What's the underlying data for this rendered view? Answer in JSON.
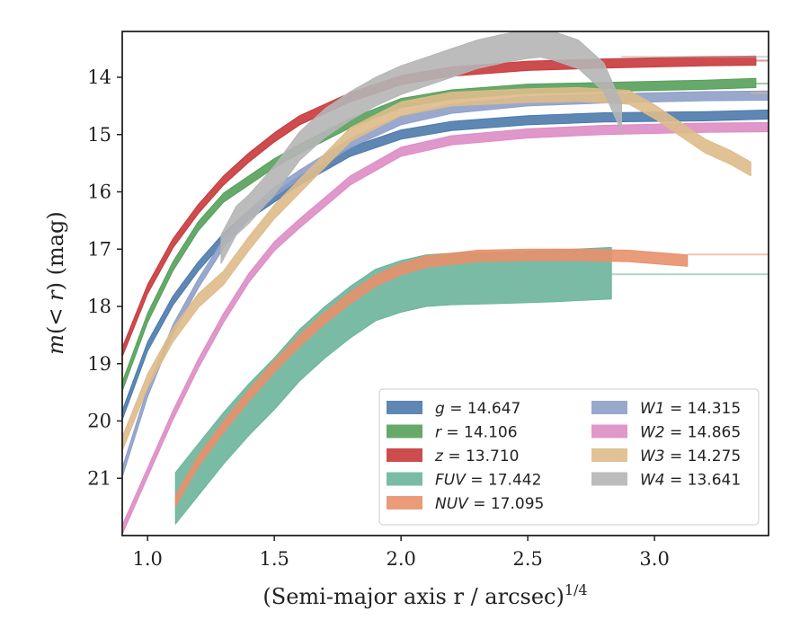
{
  "chart_data": {
    "type": "line",
    "xlabel": "(Semi-major axis r / arcsec)",
    "xlabel_superscript": "1/4",
    "ylabel_parts": [
      "m",
      "(< ",
      "r",
      ") (mag)"
    ],
    "xlim": [
      0.9,
      3.45
    ],
    "ylim": [
      22.0,
      13.2
    ],
    "y_inverted": true,
    "x_ticks": [
      "1.0",
      "1.5",
      "2.0",
      "2.5",
      "3.0"
    ],
    "y_ticks": [
      "14",
      "15",
      "16",
      "17",
      "18",
      "19",
      "20",
      "21"
    ],
    "grid": false,
    "legend_position": "lower-right",
    "series": [
      {
        "name": "g",
        "total": "14.647",
        "color": "#4c7aab",
        "band": 0.08,
        "x": [
          0.9,
          1.0,
          1.1,
          1.2,
          1.3,
          1.4,
          1.5,
          1.6,
          1.8,
          2.0,
          2.2,
          2.5,
          2.8,
          3.0,
          3.2,
          3.45
        ],
        "y": [
          19.9,
          18.7,
          17.9,
          17.3,
          16.8,
          16.4,
          16.1,
          15.8,
          15.3,
          15.0,
          14.85,
          14.75,
          14.7,
          14.69,
          14.68,
          14.65
        ],
        "tail_y": 14.65
      },
      {
        "name": "r",
        "total": "14.106",
        "color": "#55a05a",
        "band": 0.08,
        "x": [
          0.9,
          1.0,
          1.1,
          1.2,
          1.3,
          1.4,
          1.5,
          1.6,
          1.8,
          2.0,
          2.2,
          2.5,
          2.8,
          3.0,
          3.2,
          3.4
        ],
        "y": [
          19.4,
          18.2,
          17.3,
          16.6,
          16.1,
          15.8,
          15.5,
          15.25,
          14.8,
          14.45,
          14.3,
          14.2,
          14.17,
          14.15,
          14.13,
          14.1
        ],
        "tail_y": 14.11
      },
      {
        "name": "z",
        "total": "13.710",
        "color": "#c8393b",
        "band": 0.08,
        "x": [
          0.9,
          1.0,
          1.1,
          1.2,
          1.3,
          1.4,
          1.5,
          1.6,
          1.8,
          2.0,
          2.2,
          2.5,
          2.8,
          3.0,
          3.2,
          3.4
        ],
        "y": [
          18.8,
          17.7,
          16.9,
          16.3,
          15.8,
          15.4,
          15.05,
          14.75,
          14.35,
          14.05,
          13.9,
          13.8,
          13.76,
          13.74,
          13.72,
          13.71
        ],
        "tail_y": 13.71
      },
      {
        "name": "FUV",
        "total": "17.442",
        "color": "#6bb49c",
        "band": 0.45,
        "x": [
          1.11,
          1.2,
          1.3,
          1.4,
          1.5,
          1.6,
          1.7,
          1.8,
          1.9,
          2.0,
          2.1,
          2.2,
          2.4,
          2.6,
          2.83
        ],
        "y": [
          21.35,
          20.85,
          20.3,
          19.8,
          19.35,
          18.85,
          18.45,
          18.1,
          17.8,
          17.65,
          17.55,
          17.52,
          17.5,
          17.47,
          17.42
        ],
        "tail_y": 17.44
      },
      {
        "name": "NUV",
        "total": "17.095",
        "color": "#e8906c",
        "band": 0.1,
        "x": [
          1.11,
          1.2,
          1.3,
          1.4,
          1.5,
          1.6,
          1.7,
          1.8,
          1.9,
          2.0,
          2.1,
          2.3,
          2.5,
          2.7,
          2.9,
          3.13
        ],
        "y": [
          21.4,
          20.7,
          20.1,
          19.55,
          19.05,
          18.6,
          18.2,
          17.85,
          17.55,
          17.35,
          17.22,
          17.12,
          17.1,
          17.1,
          17.12,
          17.2
        ],
        "tail_y": 17.095
      },
      {
        "name": "W1",
        "total": "14.315",
        "color": "#8e9ec8",
        "band": 0.08,
        "x": [
          0.9,
          1.0,
          1.1,
          1.2,
          1.3,
          1.4,
          1.5,
          1.6,
          1.8,
          2.0,
          2.2,
          2.5,
          2.8,
          3.0,
          3.2,
          3.45
        ],
        "y": [
          20.9,
          19.5,
          18.4,
          17.6,
          16.9,
          16.4,
          16.0,
          15.7,
          15.15,
          14.75,
          14.55,
          14.42,
          14.37,
          14.35,
          14.33,
          14.32
        ],
        "tail_y": 14.315
      },
      {
        "name": "W2",
        "total": "14.865",
        "color": "#dd8cc4",
        "band": 0.08,
        "x": [
          0.9,
          1.0,
          1.1,
          1.2,
          1.3,
          1.4,
          1.5,
          1.6,
          1.8,
          2.0,
          2.2,
          2.5,
          2.8,
          3.0,
          3.2,
          3.45
        ],
        "y": [
          21.9,
          20.9,
          19.9,
          19.0,
          18.2,
          17.5,
          16.95,
          16.55,
          15.8,
          15.3,
          15.1,
          14.98,
          14.92,
          14.9,
          14.88,
          14.87
        ],
        "tail_y": 14.865
      },
      {
        "name": "W3",
        "total": "14.275",
        "color": "#ddbb8a",
        "band": 0.12,
        "x": [
          0.9,
          1.0,
          1.1,
          1.2,
          1.3,
          1.4,
          1.5,
          1.6,
          1.8,
          2.0,
          2.2,
          2.5,
          2.7,
          2.9,
          3.0,
          3.1,
          3.2,
          3.3,
          3.38
        ],
        "y": [
          20.4,
          19.3,
          18.5,
          17.9,
          17.5,
          16.9,
          16.35,
          15.9,
          15.0,
          14.55,
          14.38,
          14.32,
          14.3,
          14.35,
          14.6,
          14.9,
          15.2,
          15.4,
          15.6
        ],
        "tail_y": 14.275
      },
      {
        "name": "W4",
        "total": "13.641",
        "color": "#b5b5b5",
        "band": 0.25,
        "x": [
          1.29,
          1.35,
          1.4,
          1.5,
          1.6,
          1.7,
          1.8,
          1.9,
          2.0,
          2.1,
          2.2,
          2.3,
          2.4,
          2.5,
          2.55,
          2.6,
          2.7,
          2.8,
          2.87
        ],
        "y": [
          17.0,
          16.5,
          16.3,
          15.8,
          15.2,
          14.8,
          14.5,
          14.25,
          14.05,
          13.9,
          13.75,
          13.6,
          13.5,
          13.42,
          13.4,
          13.45,
          13.6,
          14.0,
          14.7
        ],
        "tail_y": 13.641
      }
    ]
  }
}
